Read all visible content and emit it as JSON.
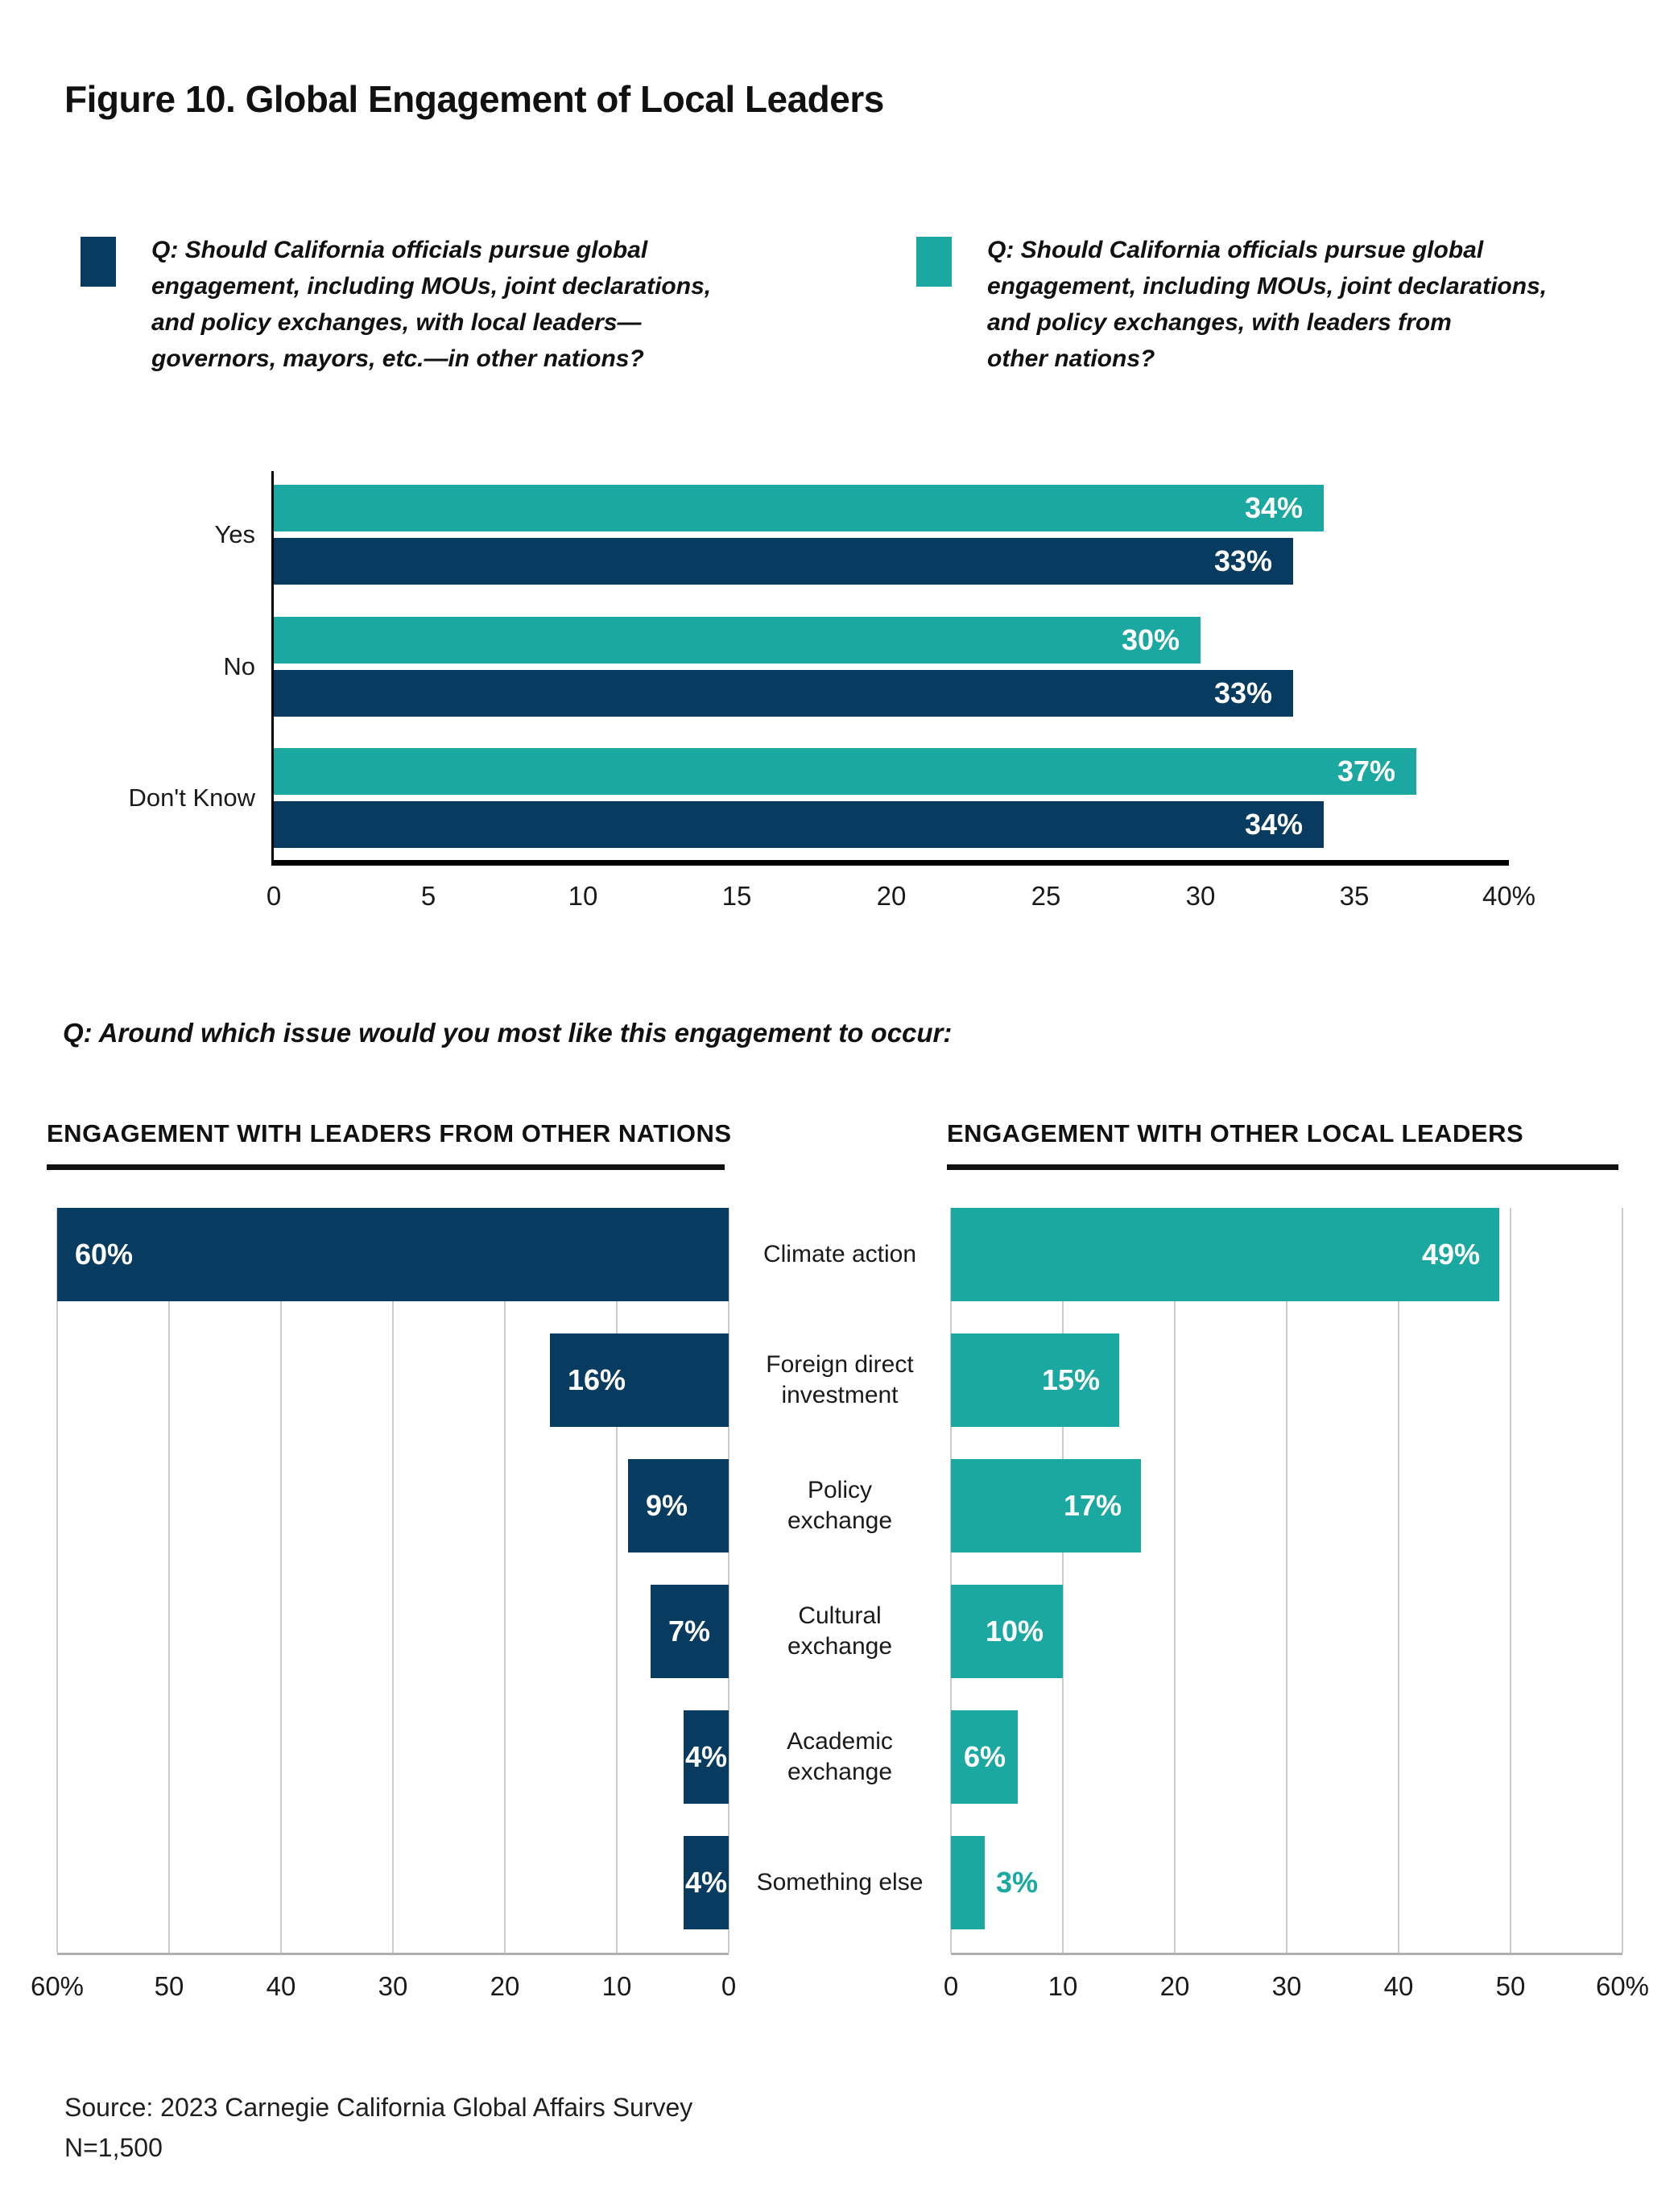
{
  "title": "Figure 10. Global Engagement of Local Leaders",
  "palette": {
    "navy": "#073B5F",
    "teal": "#1BA8A0",
    "grid_gray": "#CCCCCC",
    "axis_gray": "#B0B0B0",
    "axis_black": "#000000",
    "text": "#111111"
  },
  "legend": {
    "navy_question": "Q: Should California officials pursue global\nengagement, including MOUs, joint declarations,\nand policy exchanges, with local leaders—\ngovernors, mayors, etc.—in other nations?",
    "teal_question": "Q: Should California officials pursue global\nengagement, including MOUs, joint declarations,\nand policy exchanges, with leaders from\nother nations?"
  },
  "question2": "Q: Around which issue would you most like this engagement to occur:",
  "source": {
    "line1": "Source: 2023 Carnegie California Global Affairs Survey",
    "line2": "N=1,500"
  },
  "chart_data": [
    {
      "type": "bar",
      "orientation": "horizontal",
      "categories": [
        "Yes",
        "No",
        "Don't Know"
      ],
      "series": [
        {
          "name": "Engagement with leaders from other nations",
          "color_key": "teal",
          "values": [
            34,
            30,
            37
          ]
        },
        {
          "name": "Engagement with local leaders in other nations",
          "color_key": "navy",
          "values": [
            33,
            33,
            34
          ]
        }
      ],
      "value_label_suffix": "%",
      "xlim": [
        0,
        40
      ],
      "xticks": [
        "0",
        "5",
        "10",
        "15",
        "20",
        "25",
        "30",
        "35",
        "40%"
      ],
      "grid": false,
      "legend_position": "top"
    },
    {
      "type": "bar",
      "orientation": "horizontal",
      "direction": "right-to-left",
      "title": "ENGAGEMENT WITH LEADERS FROM OTHER NATIONS",
      "categories": [
        "Climate action",
        "Foreign direct\ninvestment",
        "Policy\nexchange",
        "Cultural\nexchange",
        "Academic\nexchange",
        "Something else"
      ],
      "values": [
        60,
        16,
        9,
        7,
        4,
        4
      ],
      "value_label_suffix": "%",
      "color_key": "navy",
      "xlim": [
        0,
        60
      ],
      "xticks": [
        "60%",
        "50",
        "40",
        "30",
        "20",
        "10",
        "0"
      ],
      "grid": true
    },
    {
      "type": "bar",
      "orientation": "horizontal",
      "direction": "left-to-right",
      "title": "ENGAGEMENT WITH OTHER LOCAL LEADERS",
      "categories": [
        "Climate action",
        "Foreign direct\ninvestment",
        "Policy\nexchange",
        "Cultural\nexchange",
        "Academic\nexchange",
        "Something else"
      ],
      "values": [
        49,
        15,
        17,
        10,
        6,
        3
      ],
      "value_label_suffix": "%",
      "color_key": "teal",
      "xlim": [
        0,
        60
      ],
      "xticks": [
        "0",
        "10",
        "20",
        "30",
        "40",
        "50",
        "60%"
      ],
      "grid": true
    }
  ]
}
